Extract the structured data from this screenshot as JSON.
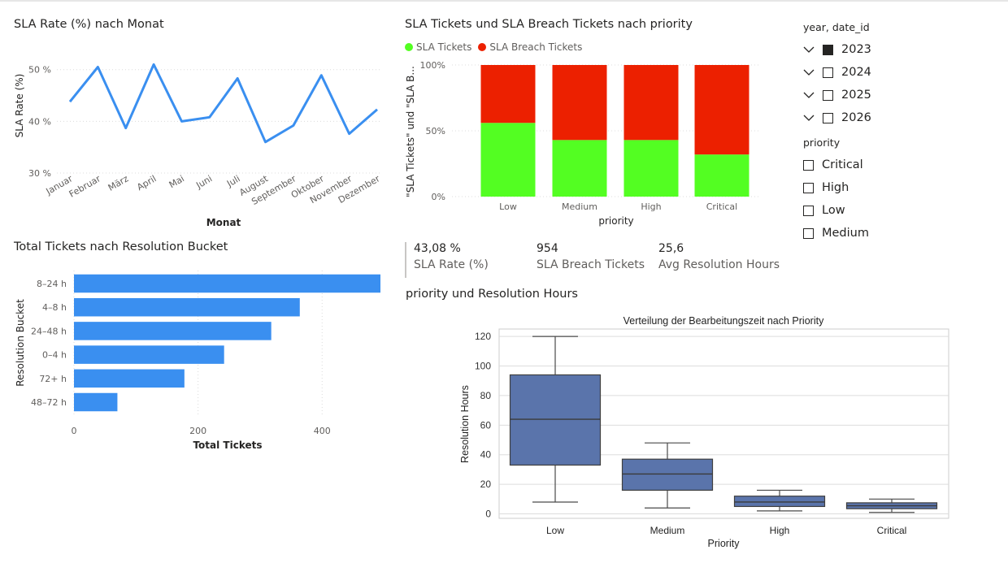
{
  "line_chart": {
    "title": "SLA Rate (%) nach Monat",
    "chart_data": {
      "type": "line",
      "categories": [
        "Januar",
        "Februar",
        "März",
        "April",
        "Mai",
        "Juni",
        "Juli",
        "August",
        "September",
        "Oktober",
        "November",
        "Dezember"
      ],
      "values": [
        43.8,
        50.5,
        38.7,
        51.0,
        40.0,
        40.8,
        48.3,
        36.0,
        39.2,
        48.9,
        37.6,
        42.3
      ],
      "ylim": [
        30,
        52
      ],
      "yticks": [
        30,
        40,
        50
      ],
      "ytick_labels": [
        "30 %",
        "40 %",
        "50 %"
      ],
      "xlabel": "Monat",
      "ylabel": "SLA Rate (%)",
      "color": "#3a8ff0"
    }
  },
  "stacked_chart": {
    "title": "SLA Tickets und SLA Breach Tickets nach priority",
    "legend": [
      {
        "name": "SLA Tickets",
        "color": "#53fe22"
      },
      {
        "name": "SLA Breach Tickets",
        "color": "#ec2000"
      }
    ],
    "chart_data": {
      "type": "bar",
      "stacked": "100%",
      "categories": [
        "Low",
        "Medium",
        "High",
        "Critical"
      ],
      "series": [
        {
          "name": "SLA Tickets",
          "values": [
            56,
            43,
            43,
            32
          ],
          "color": "#53fe22"
        },
        {
          "name": "SLA Breach Tickets",
          "values": [
            44,
            57,
            57,
            68
          ],
          "color": "#ec2000"
        }
      ],
      "yticks": [
        0,
        50,
        100
      ],
      "ytick_labels": [
        "0%",
        "50%",
        "100%"
      ],
      "xlabel": "priority",
      "ylabel": "\"SLA Tickets\" und \"SLA B..."
    }
  },
  "year_slicer": {
    "title": "year, date_id",
    "items": [
      {
        "label": "2023",
        "checked": true
      },
      {
        "label": "2024",
        "checked": false
      },
      {
        "label": "2025",
        "checked": false
      },
      {
        "label": "2026",
        "checked": false
      }
    ]
  },
  "priority_slicer": {
    "title": "priority",
    "items": [
      {
        "label": "Critical",
        "checked": false
      },
      {
        "label": "High",
        "checked": false
      },
      {
        "label": "Low",
        "checked": false
      },
      {
        "label": "Medium",
        "checked": false
      }
    ]
  },
  "bar_chart": {
    "title": "Total Tickets nach Resolution Bucket",
    "chart_data": {
      "type": "bar",
      "orientation": "horizontal",
      "categories": [
        "8–24 h",
        "4–8 h",
        "24–48 h",
        "0–4 h",
        "72+ h",
        "48–72 h"
      ],
      "values": [
        494,
        364,
        318,
        242,
        178,
        70
      ],
      "xlim": [
        0,
        494
      ],
      "xticks": [
        0,
        200,
        400
      ],
      "xlabel": "Total Tickets",
      "ylabel": "Resolution Bucket",
      "color": "#3a8ff0"
    }
  },
  "kpis": [
    {
      "value": "43,08 %",
      "label": "SLA Rate (%)"
    },
    {
      "value": "954",
      "label": "SLA Breach Tickets"
    },
    {
      "value": "25,6",
      "label": "Avg Resolution Hours"
    }
  ],
  "box_visual": {
    "title": "priority und Resolution Hours",
    "chart_data": {
      "type": "box",
      "title": "Verteilung der Bearbeitungszeit nach Priority",
      "categories": [
        "Low",
        "Medium",
        "High",
        "Critical"
      ],
      "boxes": [
        {
          "min": 8,
          "q1": 33,
          "median": 64,
          "q3": 94,
          "max": 120
        },
        {
          "min": 4,
          "q1": 16,
          "median": 27,
          "q3": 37,
          "max": 48
        },
        {
          "min": 2,
          "q1": 5,
          "median": 8,
          "q3": 12,
          "max": 16
        },
        {
          "min": 1,
          "q1": 3.5,
          "median": 5.5,
          "q3": 7.5,
          "max": 10
        }
      ],
      "ylim": [
        -3,
        125
      ],
      "yticks": [
        0,
        20,
        40,
        60,
        80,
        100,
        120
      ],
      "xlabel": "Priority",
      "ylabel": "Resolution Hours",
      "color": "#5a74ab"
    }
  }
}
